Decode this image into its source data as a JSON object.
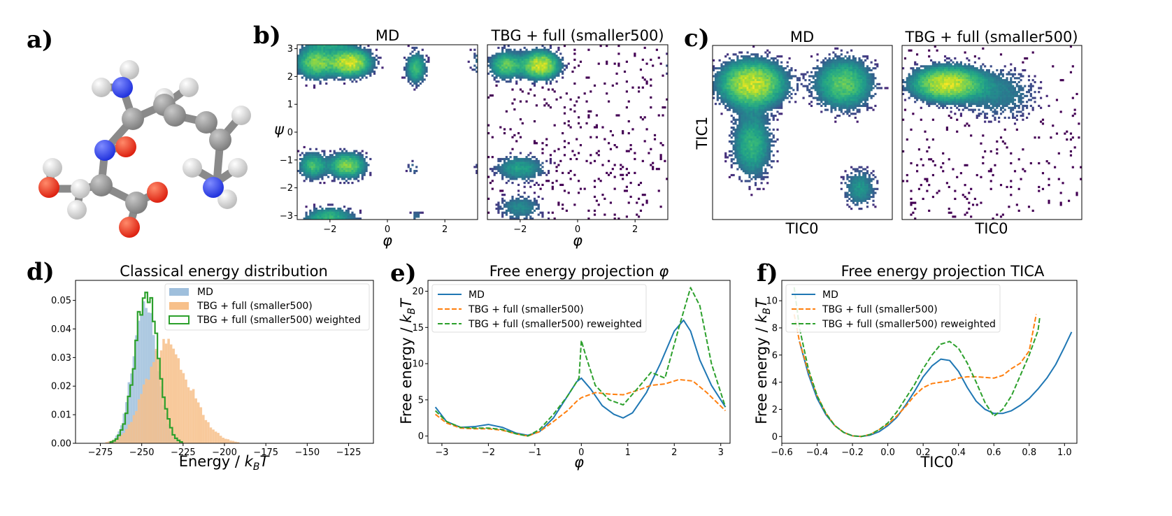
{
  "panels": {
    "a": {
      "label": "a)"
    },
    "b": {
      "label": "b)"
    },
    "c": {
      "label": "c)"
    },
    "d": {
      "label": "d)"
    },
    "e": {
      "label": "e)"
    },
    "f": {
      "label": "f)"
    }
  },
  "colors": {
    "md": "#1f77b4",
    "tbg": "#ff7f0e",
    "reweighted": "#2ca02c",
    "hist_md": "#9fbfdc",
    "hist_tbg": "#f7c08a",
    "viridis_low": "#440154",
    "viridis_mid": "#21918c",
    "viridis_high": "#fde725",
    "atom_c": "#7f7f7f",
    "atom_h": "#f0f0f0",
    "atom_n": "#2233dd",
    "atom_o": "#dd2211"
  },
  "molecule": {
    "atoms": [
      {
        "el": "o"
      },
      {
        "el": "o"
      },
      {
        "el": "o"
      },
      {
        "el": "o"
      },
      {
        "el": "n"
      },
      {
        "el": "n"
      },
      {
        "el": "n"
      }
    ]
  },
  "chart_data": [
    {
      "id": "b_md",
      "type": "heatmap",
      "title": "MD",
      "xlabel": "φ",
      "ylabel": "ψ",
      "xlim": [
        -3.14,
        3.14
      ],
      "ylim": [
        -3.14,
        3.14
      ],
      "xticks": [
        "−2",
        "0",
        "2"
      ],
      "yticks": [
        "3",
        "2",
        "1",
        "0",
        "−1",
        "−2",
        "−3"
      ],
      "modes": [
        {
          "x": -1.3,
          "y": 2.5,
          "sx": 0.45,
          "sy": 0.3,
          "w": 1.0
        },
        {
          "x": -2.5,
          "y": 2.5,
          "sx": 0.4,
          "sy": 0.35,
          "w": 0.7
        },
        {
          "x": 1.0,
          "y": 2.3,
          "sx": 0.22,
          "sy": 0.35,
          "w": 0.5
        },
        {
          "x": -1.4,
          "y": -1.2,
          "sx": 0.4,
          "sy": 0.28,
          "w": 0.7
        },
        {
          "x": -2.6,
          "y": -1.2,
          "sx": 0.3,
          "sy": 0.3,
          "w": 0.5
        },
        {
          "x": 0.9,
          "y": -1.3,
          "sx": 0.15,
          "sy": 0.2,
          "w": 0.15
        },
        {
          "x": -2.0,
          "y": -3.0,
          "sx": 0.5,
          "sy": 0.2,
          "w": 0.4
        },
        {
          "x": 1.0,
          "y": -3.0,
          "sx": 0.15,
          "sy": 0.15,
          "w": 0.15
        }
      ]
    },
    {
      "id": "b_tbg",
      "type": "heatmap",
      "title": "TBG + full (smaller500)",
      "xlabel": "φ",
      "xlim": [
        -3.14,
        3.14
      ],
      "ylim": [
        -3.14,
        3.14
      ],
      "xticks": [
        "−2",
        "0",
        "2"
      ],
      "modes": [
        {
          "x": -1.3,
          "y": 2.4,
          "sx": 0.4,
          "sy": 0.3,
          "w": 1.0
        },
        {
          "x": -2.5,
          "y": 2.4,
          "sx": 0.35,
          "sy": 0.3,
          "w": 0.6
        },
        {
          "x": -2.0,
          "y": -1.3,
          "sx": 0.55,
          "sy": 0.3,
          "w": 0.35
        },
        {
          "x": -2.0,
          "y": -2.7,
          "sx": 0.5,
          "sy": 0.3,
          "w": 0.25
        }
      ],
      "noise": 0.05
    },
    {
      "id": "c_md",
      "type": "heatmap",
      "title": "MD",
      "xlabel": "TIC0",
      "ylabel": "TIC1",
      "modes": [
        {
          "x": 0.22,
          "y": 0.78,
          "sx": 0.11,
          "sy": 0.08,
          "w": 1.0
        },
        {
          "x": 0.73,
          "y": 0.78,
          "sx": 0.1,
          "sy": 0.09,
          "w": 0.6
        },
        {
          "x": 0.22,
          "y": 0.43,
          "sx": 0.07,
          "sy": 0.12,
          "w": 0.45
        },
        {
          "x": 0.82,
          "y": 0.18,
          "sx": 0.06,
          "sy": 0.07,
          "w": 0.3
        }
      ]
    },
    {
      "id": "c_tbg",
      "type": "heatmap",
      "title": "TBG + full (smaller500)",
      "xlabel": "TIC0",
      "modes": [
        {
          "x": 0.25,
          "y": 0.78,
          "sx": 0.12,
          "sy": 0.06,
          "w": 1.0
        },
        {
          "x": 0.55,
          "y": 0.72,
          "sx": 0.14,
          "sy": 0.1,
          "w": 0.2
        }
      ],
      "noise": 0.03
    },
    {
      "id": "d",
      "type": "histogram",
      "title": "Classical energy distribution",
      "xlabel": "Energy  / kBT",
      "xlim": [
        -290,
        -110
      ],
      "ylim": [
        0,
        0.057
      ],
      "xticks": [
        -275,
        -250,
        -225,
        -200,
        -175,
        -150,
        -125
      ],
      "yticks": [
        0.0,
        0.01,
        0.02,
        0.03,
        0.04,
        0.05
      ],
      "bin_width": 1.5,
      "series": [
        {
          "name": "MD",
          "style": "filled",
          "mean": -248,
          "sd": 7,
          "peak": 0.052
        },
        {
          "name": "TBG + full (smaller500)",
          "style": "filled",
          "mean": -236,
          "sd": 12,
          "peak": 0.034
        },
        {
          "name": "TBG + full (smaller500) weighted",
          "style": "step",
          "mean": -247,
          "sd": 6.8,
          "peak": 0.055
        }
      ]
    },
    {
      "id": "e",
      "type": "line",
      "title": "Free energy projection φ",
      "xlabel": "φ",
      "ylabel": "Free energy / kBT",
      "xlim": [
        -3.3,
        3.2
      ],
      "ylim": [
        -1,
        21.5
      ],
      "xticks": [
        -3,
        -2,
        -1,
        0,
        1,
        2,
        3
      ],
      "yticks": [
        0,
        5,
        10,
        15,
        20
      ],
      "series": [
        {
          "name": "MD",
          "dash": "solid",
          "x": [
            -3.14,
            -2.9,
            -2.6,
            -2.3,
            -2.0,
            -1.7,
            -1.4,
            -1.15,
            -0.9,
            -0.6,
            -0.3,
            -0.1,
            0.0,
            0.2,
            0.45,
            0.7,
            0.9,
            1.1,
            1.4,
            1.7,
            2.0,
            2.2,
            2.35,
            2.55,
            2.8,
            3.1
          ],
          "y": [
            4.0,
            2.0,
            1.2,
            1.3,
            1.6,
            1.2,
            0.4,
            0.1,
            0.6,
            2.5,
            5.5,
            7.5,
            8.0,
            6.5,
            4.2,
            3.0,
            2.5,
            3.2,
            6.0,
            10.0,
            14.5,
            16.0,
            14.5,
            10.5,
            7.0,
            4.0
          ]
        },
        {
          "name": "TBG + full (smaller500)",
          "dash": "dash",
          "x": [
            -3.14,
            -2.9,
            -2.6,
            -2.3,
            -2.0,
            -1.7,
            -1.4,
            -1.15,
            -0.9,
            -0.6,
            -0.3,
            -0.1,
            0.0,
            0.3,
            0.6,
            0.9,
            1.2,
            1.5,
            1.8,
            2.1,
            2.4,
            2.7,
            3.1
          ],
          "y": [
            3.0,
            1.8,
            1.1,
            1.0,
            1.0,
            0.8,
            0.3,
            0.0,
            0.6,
            2.0,
            3.5,
            4.8,
            5.3,
            6.0,
            5.8,
            5.7,
            6.3,
            7.0,
            7.2,
            7.8,
            7.6,
            6.0,
            3.5
          ]
        },
        {
          "name": "TBG + full (smaller500) reweighted",
          "dash": "dash",
          "x": [
            -3.14,
            -2.9,
            -2.6,
            -2.3,
            -2.0,
            -1.7,
            -1.4,
            -1.15,
            -0.9,
            -0.6,
            -0.3,
            -0.05,
            0.0,
            0.1,
            0.3,
            0.6,
            0.9,
            1.2,
            1.5,
            1.8,
            2.1,
            2.35,
            2.55,
            2.8,
            3.1
          ],
          "y": [
            3.5,
            2.0,
            1.2,
            1.1,
            1.1,
            0.9,
            0.3,
            0.0,
            0.9,
            3.0,
            5.5,
            8.0,
            13.2,
            11.0,
            7.0,
            5.0,
            4.3,
            6.5,
            8.8,
            8.0,
            15.0,
            20.5,
            18.0,
            10.0,
            4.0
          ]
        }
      ],
      "legend": "upper-left"
    },
    {
      "id": "f",
      "type": "line",
      "title": "Free energy projection TICA",
      "xlabel": "TIC0",
      "ylabel": "Free energy / kBT",
      "xlim": [
        -0.6,
        1.07
      ],
      "ylim": [
        -0.5,
        11.5
      ],
      "xticks": [
        -0.6,
        -0.4,
        -0.2,
        0.0,
        0.2,
        0.4,
        0.6,
        0.8,
        1.0
      ],
      "xtick_labels": [
        "−0.6",
        "−0.4",
        "−0.2",
        "0.0",
        "0.2",
        "0.4",
        "0.6",
        "0.8",
        "1.0"
      ],
      "yticks": [
        0,
        2,
        4,
        6,
        8,
        10
      ],
      "series": [
        {
          "name": "MD",
          "dash": "solid",
          "x": [
            -0.5,
            -0.45,
            -0.4,
            -0.35,
            -0.3,
            -0.25,
            -0.2,
            -0.15,
            -0.1,
            -0.05,
            0.0,
            0.05,
            0.1,
            0.15,
            0.2,
            0.25,
            0.3,
            0.35,
            0.4,
            0.45,
            0.5,
            0.55,
            0.6,
            0.65,
            0.7,
            0.75,
            0.8,
            0.85,
            0.9,
            0.95,
            1.0,
            1.04
          ],
          "y": [
            7.0,
            4.6,
            2.8,
            1.6,
            0.8,
            0.3,
            0.05,
            0.0,
            0.1,
            0.35,
            0.8,
            1.4,
            2.3,
            3.3,
            4.4,
            5.2,
            5.7,
            5.6,
            4.8,
            3.6,
            2.6,
            2.0,
            1.7,
            1.7,
            1.9,
            2.3,
            2.8,
            3.5,
            4.3,
            5.3,
            6.6,
            7.7
          ]
        },
        {
          "name": "TBG + full (smaller500)",
          "dash": "dash",
          "x": [
            -0.53,
            -0.5,
            -0.45,
            -0.4,
            -0.35,
            -0.3,
            -0.25,
            -0.2,
            -0.15,
            -0.1,
            -0.05,
            0.0,
            0.05,
            0.1,
            0.15,
            0.2,
            0.25,
            0.3,
            0.35,
            0.4,
            0.45,
            0.5,
            0.55,
            0.6,
            0.65,
            0.7,
            0.75,
            0.8,
            0.84
          ],
          "y": [
            9.0,
            7.0,
            4.8,
            3.0,
            1.7,
            0.8,
            0.3,
            0.05,
            0.0,
            0.15,
            0.5,
            0.9,
            1.5,
            2.2,
            3.0,
            3.6,
            3.9,
            4.0,
            4.1,
            4.3,
            4.4,
            4.4,
            4.35,
            4.3,
            4.5,
            5.0,
            5.4,
            6.3,
            9.0
          ]
        },
        {
          "name": "TBG + full (smaller500) reweighted",
          "dash": "dash",
          "x": [
            -0.53,
            -0.5,
            -0.45,
            -0.4,
            -0.35,
            -0.3,
            -0.25,
            -0.2,
            -0.15,
            -0.1,
            -0.05,
            0.0,
            0.05,
            0.1,
            0.15,
            0.2,
            0.25,
            0.3,
            0.35,
            0.4,
            0.45,
            0.5,
            0.55,
            0.6,
            0.65,
            0.7,
            0.75,
            0.8,
            0.85,
            0.86
          ],
          "y": [
            11.0,
            8.0,
            5.0,
            3.0,
            1.7,
            0.8,
            0.3,
            0.05,
            0.0,
            0.15,
            0.5,
            1.0,
            1.8,
            2.8,
            3.8,
            5.0,
            6.0,
            6.8,
            7.0,
            6.5,
            5.4,
            4.0,
            2.5,
            1.5,
            2.0,
            3.0,
            4.5,
            6.0,
            7.8,
            8.8
          ]
        }
      ],
      "legend": "upper-left"
    }
  ]
}
